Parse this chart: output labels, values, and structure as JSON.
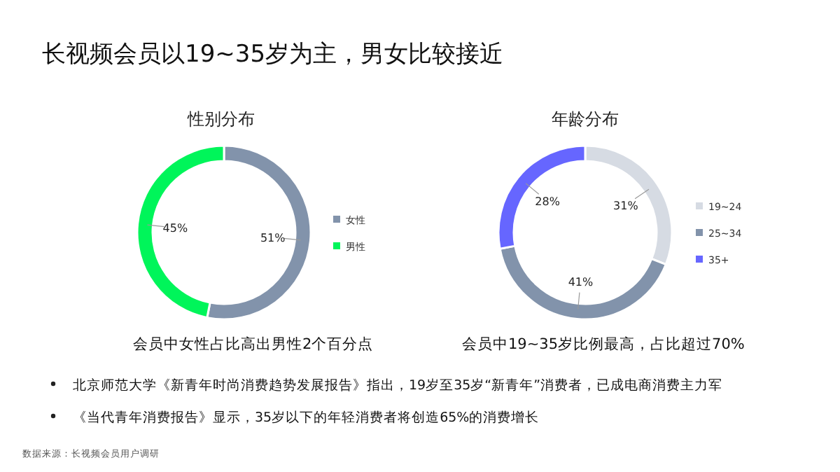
{
  "chart_data": [
    {
      "type": "donut",
      "title": "性别分布",
      "categories": [
        "女性",
        "男性"
      ],
      "values": [
        51,
        45
      ],
      "colors": [
        "#8293ab",
        "#00f55a"
      ],
      "value_labels": [
        "51%",
        "45%"
      ],
      "legend": "right",
      "annotations": [
        "会员中女性占比高出男性2个百分点"
      ]
    },
    {
      "type": "donut",
      "title": "年龄分布",
      "categories": [
        "19~24",
        "25~34",
        "35+"
      ],
      "values": [
        31,
        41,
        28
      ],
      "colors": [
        "#d6dbe3",
        "#8293ab",
        "#6666ff"
      ],
      "value_labels": [
        "31%",
        "41%",
        "28%"
      ],
      "legend": "right",
      "annotations": [
        "会员中19~35岁比例最高，占比超过70%"
      ]
    },
    {
      "type": "other",
      "title": "长视频会员以19~35岁为主，男女比较接近",
      "annotations": [
        "北京师范大学《新青年时尚消费趋势发展报告》指出，19岁至35岁“新青年”消费者，已成电商消费主力军",
        "《当代青年消费报告》显示，35岁以下的年轻消费者将创造65%的消费增长",
        "数据来源：长视频会员用户调研"
      ]
    }
  ]
}
